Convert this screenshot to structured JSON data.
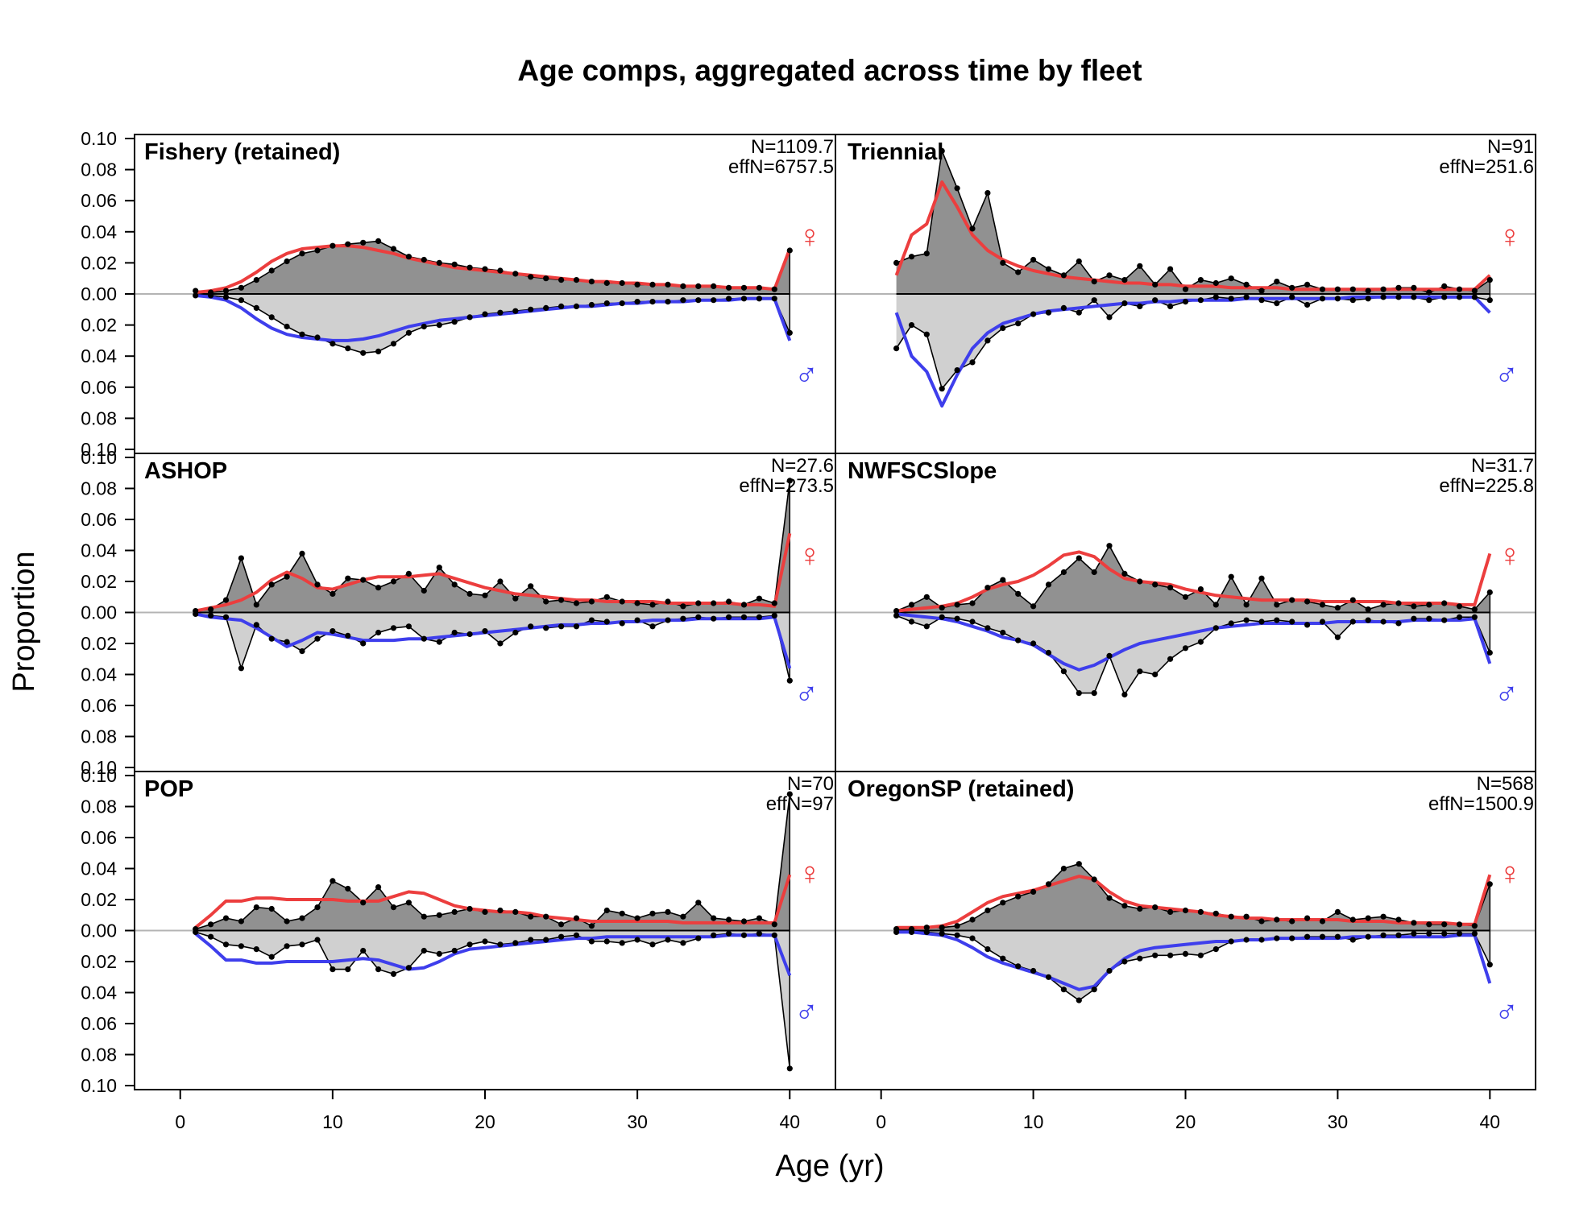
{
  "chart_data": {
    "type": "area",
    "title": "Age comps, aggregated across time by fleet",
    "xlabel": "Age (yr)",
    "ylabel": "Proportion",
    "xlim": [
      -3,
      43
    ],
    "ylim": [
      -0.1,
      0.1
    ],
    "x_ticks": [
      0,
      10,
      20,
      30,
      40
    ],
    "y_tick_labels": [
      "0.10",
      "0.08",
      "0.06",
      "0.04",
      "0.02",
      "0.00",
      "0.02",
      "0.04",
      "0.06",
      "0.08",
      "0.10"
    ],
    "sex_symbols": {
      "female": "♀",
      "male": "♂"
    },
    "colors": {
      "female_fill": "#919191",
      "male_fill": "#d0d0d0",
      "female_expected": "#ec3e3e",
      "male_expected": "#3e3eec",
      "observed": "#000000",
      "zero_line": "#b4b4b4"
    },
    "panels": [
      {
        "name": "Fishery (retained)",
        "n_label": "N=1109.7",
        "effn_label": "effN=6757.5",
        "female_obs": [
          0.002,
          0.001,
          0.002,
          0.004,
          0.009,
          0.015,
          0.021,
          0.026,
          0.028,
          0.031,
          0.032,
          0.033,
          0.034,
          0.029,
          0.024,
          0.022,
          0.02,
          0.019,
          0.017,
          0.016,
          0.015,
          0.013,
          0.011,
          0.01,
          0.009,
          0.009,
          0.008,
          0.007,
          0.007,
          0.006,
          0.006,
          0.006,
          0.005,
          0.005,
          0.005,
          0.004,
          0.004,
          0.004,
          0.003,
          0.028
        ],
        "male_obs": [
          0.001,
          0.001,
          0.002,
          0.004,
          0.009,
          0.015,
          0.021,
          0.026,
          0.028,
          0.032,
          0.035,
          0.038,
          0.037,
          0.032,
          0.025,
          0.021,
          0.02,
          0.018,
          0.015,
          0.013,
          0.012,
          0.011,
          0.01,
          0.009,
          0.008,
          0.008,
          0.007,
          0.006,
          0.006,
          0.005,
          0.005,
          0.005,
          0.004,
          0.004,
          0.004,
          0.003,
          0.003,
          0.003,
          0.003,
          0.025
        ],
        "female_exp": [
          0.001,
          0.002,
          0.004,
          0.008,
          0.014,
          0.021,
          0.026,
          0.029,
          0.03,
          0.031,
          0.031,
          0.03,
          0.028,
          0.026,
          0.023,
          0.021,
          0.019,
          0.017,
          0.016,
          0.015,
          0.014,
          0.013,
          0.012,
          0.011,
          0.01,
          0.009,
          0.008,
          0.008,
          0.007,
          0.007,
          0.006,
          0.006,
          0.005,
          0.005,
          0.005,
          0.004,
          0.004,
          0.004,
          0.003,
          0.029
        ],
        "male_exp": [
          0.001,
          0.002,
          0.004,
          0.009,
          0.016,
          0.022,
          0.026,
          0.028,
          0.029,
          0.03,
          0.03,
          0.029,
          0.027,
          0.024,
          0.021,
          0.019,
          0.017,
          0.016,
          0.015,
          0.014,
          0.013,
          0.012,
          0.011,
          0.01,
          0.009,
          0.008,
          0.008,
          0.007,
          0.006,
          0.006,
          0.005,
          0.005,
          0.005,
          0.004,
          0.004,
          0.004,
          0.003,
          0.003,
          0.003,
          0.03
        ]
      },
      {
        "name": "Triennial",
        "n_label": "N=91",
        "effn_label": "effN=251.6",
        "female_obs": [
          0.02,
          0.024,
          0.026,
          0.092,
          0.068,
          0.042,
          0.065,
          0.02,
          0.014,
          0.022,
          0.016,
          0.012,
          0.021,
          0.008,
          0.012,
          0.009,
          0.018,
          0.006,
          0.016,
          0.003,
          0.009,
          0.007,
          0.01,
          0.006,
          0.002,
          0.008,
          0.004,
          0.006,
          0.003,
          0.003,
          0.003,
          0.002,
          0.003,
          0.004,
          0.004,
          0.001,
          0.005,
          0.003,
          0.002,
          0.009
        ],
        "male_obs": [
          0.035,
          0.02,
          0.026,
          0.061,
          0.049,
          0.044,
          0.03,
          0.022,
          0.019,
          0.013,
          0.012,
          0.009,
          0.012,
          0.004,
          0.015,
          0.006,
          0.008,
          0.004,
          0.008,
          0.005,
          0.004,
          0.002,
          0.003,
          0.002,
          0.004,
          0.006,
          0.002,
          0.007,
          0.003,
          0.003,
          0.004,
          0.003,
          0.002,
          0.002,
          0.002,
          0.004,
          0.002,
          0.002,
          0.002,
          0.004
        ],
        "female_exp": [
          0.012,
          0.038,
          0.045,
          0.072,
          0.056,
          0.038,
          0.028,
          0.022,
          0.018,
          0.015,
          0.013,
          0.011,
          0.01,
          0.009,
          0.008,
          0.007,
          0.007,
          0.006,
          0.006,
          0.005,
          0.005,
          0.005,
          0.004,
          0.004,
          0.004,
          0.004,
          0.003,
          0.003,
          0.003,
          0.003,
          0.003,
          0.003,
          0.003,
          0.003,
          0.003,
          0.003,
          0.003,
          0.003,
          0.003,
          0.012
        ],
        "male_exp": [
          0.012,
          0.04,
          0.05,
          0.072,
          0.052,
          0.035,
          0.025,
          0.019,
          0.016,
          0.013,
          0.011,
          0.01,
          0.009,
          0.008,
          0.007,
          0.006,
          0.006,
          0.005,
          0.005,
          0.004,
          0.004,
          0.004,
          0.004,
          0.003,
          0.003,
          0.003,
          0.003,
          0.003,
          0.003,
          0.003,
          0.002,
          0.002,
          0.002,
          0.002,
          0.002,
          0.002,
          0.002,
          0.002,
          0.002,
          0.012
        ]
      },
      {
        "name": "ASHOP",
        "n_label": "N=27.6",
        "effn_label": "effN=273.5",
        "female_obs": [
          0.001,
          0.002,
          0.008,
          0.035,
          0.005,
          0.018,
          0.023,
          0.038,
          0.018,
          0.012,
          0.022,
          0.021,
          0.016,
          0.02,
          0.025,
          0.014,
          0.029,
          0.018,
          0.012,
          0.011,
          0.02,
          0.009,
          0.017,
          0.007,
          0.008,
          0.006,
          0.007,
          0.01,
          0.007,
          0.006,
          0.005,
          0.007,
          0.004,
          0.006,
          0.006,
          0.007,
          0.005,
          0.009,
          0.006,
          0.085
        ],
        "male_obs": [
          0.001,
          0.002,
          0.003,
          0.036,
          0.008,
          0.017,
          0.019,
          0.025,
          0.017,
          0.012,
          0.015,
          0.02,
          0.013,
          0.01,
          0.009,
          0.017,
          0.019,
          0.013,
          0.014,
          0.012,
          0.02,
          0.013,
          0.009,
          0.01,
          0.009,
          0.009,
          0.005,
          0.006,
          0.007,
          0.005,
          0.009,
          0.005,
          0.004,
          0.003,
          0.004,
          0.003,
          0.003,
          0.003,
          0.002,
          0.044
        ],
        "female_exp": [
          0.001,
          0.003,
          0.005,
          0.008,
          0.013,
          0.021,
          0.026,
          0.022,
          0.016,
          0.015,
          0.018,
          0.021,
          0.023,
          0.023,
          0.023,
          0.024,
          0.025,
          0.022,
          0.019,
          0.016,
          0.014,
          0.012,
          0.011,
          0.01,
          0.009,
          0.008,
          0.008,
          0.007,
          0.007,
          0.007,
          0.007,
          0.006,
          0.006,
          0.006,
          0.006,
          0.006,
          0.005,
          0.005,
          0.004,
          0.051
        ],
        "male_exp": [
          0.001,
          0.003,
          0.004,
          0.005,
          0.01,
          0.016,
          0.022,
          0.018,
          0.013,
          0.014,
          0.016,
          0.018,
          0.018,
          0.018,
          0.017,
          0.017,
          0.016,
          0.015,
          0.014,
          0.013,
          0.012,
          0.011,
          0.01,
          0.009,
          0.008,
          0.008,
          0.007,
          0.007,
          0.006,
          0.006,
          0.005,
          0.005,
          0.005,
          0.004,
          0.004,
          0.004,
          0.004,
          0.004,
          0.003,
          0.036
        ]
      },
      {
        "name": "NWFSCSlope",
        "n_label": "N=31.7",
        "effn_label": "effN=225.8",
        "female_obs": [
          0.001,
          0.005,
          0.01,
          0.003,
          0.005,
          0.006,
          0.016,
          0.021,
          0.012,
          0.004,
          0.018,
          0.026,
          0.035,
          0.026,
          0.043,
          0.025,
          0.02,
          0.018,
          0.016,
          0.01,
          0.015,
          0.005,
          0.023,
          0.005,
          0.022,
          0.005,
          0.008,
          0.007,
          0.005,
          0.003,
          0.008,
          0.002,
          0.005,
          0.006,
          0.004,
          0.005,
          0.006,
          0.004,
          0.002,
          0.013
        ],
        "male_obs": [
          0.002,
          0.006,
          0.009,
          0.003,
          0.004,
          0.006,
          0.01,
          0.013,
          0.018,
          0.02,
          0.026,
          0.038,
          0.052,
          0.052,
          0.028,
          0.053,
          0.038,
          0.04,
          0.03,
          0.023,
          0.019,
          0.01,
          0.007,
          0.005,
          0.006,
          0.005,
          0.006,
          0.008,
          0.006,
          0.016,
          0.006,
          0.005,
          0.006,
          0.007,
          0.004,
          0.004,
          0.005,
          0.003,
          0.003,
          0.026
        ],
        "female_exp": [
          0.001,
          0.002,
          0.003,
          0.004,
          0.006,
          0.01,
          0.015,
          0.018,
          0.02,
          0.024,
          0.03,
          0.037,
          0.039,
          0.036,
          0.028,
          0.022,
          0.02,
          0.019,
          0.018,
          0.015,
          0.013,
          0.011,
          0.01,
          0.009,
          0.008,
          0.008,
          0.008,
          0.008,
          0.007,
          0.007,
          0.007,
          0.007,
          0.007,
          0.006,
          0.006,
          0.006,
          0.006,
          0.005,
          0.005,
          0.038
        ],
        "male_exp": [
          0.001,
          0.002,
          0.003,
          0.004,
          0.006,
          0.009,
          0.012,
          0.016,
          0.018,
          0.021,
          0.027,
          0.033,
          0.037,
          0.034,
          0.029,
          0.024,
          0.02,
          0.018,
          0.016,
          0.014,
          0.012,
          0.01,
          0.009,
          0.008,
          0.007,
          0.007,
          0.007,
          0.007,
          0.007,
          0.006,
          0.006,
          0.006,
          0.006,
          0.006,
          0.005,
          0.005,
          0.005,
          0.005,
          0.004,
          0.033
        ]
      },
      {
        "name": "POP",
        "n_label": "N=70",
        "effn_label": "effN=97",
        "female_obs": [
          0.001,
          0.004,
          0.008,
          0.006,
          0.015,
          0.014,
          0.006,
          0.008,
          0.015,
          0.032,
          0.027,
          0.018,
          0.028,
          0.015,
          0.018,
          0.009,
          0.01,
          0.012,
          0.014,
          0.012,
          0.013,
          0.012,
          0.009,
          0.009,
          0.004,
          0.008,
          0.003,
          0.013,
          0.011,
          0.008,
          0.011,
          0.012,
          0.009,
          0.018,
          0.008,
          0.007,
          0.006,
          0.008,
          0.004,
          0.088
        ],
        "male_obs": [
          0.001,
          0.004,
          0.009,
          0.01,
          0.012,
          0.017,
          0.01,
          0.009,
          0.006,
          0.025,
          0.025,
          0.013,
          0.025,
          0.028,
          0.024,
          0.013,
          0.015,
          0.013,
          0.009,
          0.007,
          0.009,
          0.008,
          0.006,
          0.006,
          0.004,
          0.003,
          0.007,
          0.007,
          0.008,
          0.006,
          0.009,
          0.006,
          0.008,
          0.005,
          0.003,
          0.002,
          0.003,
          0.002,
          0.003,
          0.089
        ],
        "female_exp": [
          0.002,
          0.01,
          0.019,
          0.019,
          0.021,
          0.021,
          0.02,
          0.02,
          0.02,
          0.02,
          0.019,
          0.019,
          0.019,
          0.022,
          0.025,
          0.024,
          0.02,
          0.016,
          0.014,
          0.013,
          0.012,
          0.012,
          0.011,
          0.009,
          0.008,
          0.007,
          0.006,
          0.006,
          0.006,
          0.006,
          0.006,
          0.006,
          0.005,
          0.005,
          0.005,
          0.005,
          0.005,
          0.005,
          0.005,
          0.036
        ],
        "male_exp": [
          0.002,
          0.01,
          0.019,
          0.019,
          0.021,
          0.021,
          0.02,
          0.02,
          0.02,
          0.02,
          0.019,
          0.018,
          0.019,
          0.022,
          0.025,
          0.024,
          0.02,
          0.015,
          0.012,
          0.011,
          0.01,
          0.009,
          0.008,
          0.007,
          0.006,
          0.005,
          0.005,
          0.004,
          0.004,
          0.004,
          0.004,
          0.004,
          0.004,
          0.004,
          0.004,
          0.003,
          0.003,
          0.003,
          0.003,
          0.029
        ]
      },
      {
        "name": "OregonSP (retained)",
        "n_label": "N=568",
        "effn_label": "effN=1500.9",
        "female_obs": [
          0.001,
          0.001,
          0.002,
          0.002,
          0.003,
          0.007,
          0.013,
          0.018,
          0.022,
          0.025,
          0.03,
          0.04,
          0.043,
          0.033,
          0.021,
          0.016,
          0.014,
          0.015,
          0.012,
          0.013,
          0.012,
          0.011,
          0.009,
          0.009,
          0.006,
          0.007,
          0.006,
          0.008,
          0.006,
          0.012,
          0.007,
          0.008,
          0.009,
          0.007,
          0.005,
          0.004,
          0.004,
          0.004,
          0.003,
          0.03
        ],
        "male_obs": [
          0.001,
          0.001,
          0.001,
          0.002,
          0.003,
          0.005,
          0.012,
          0.018,
          0.023,
          0.026,
          0.03,
          0.038,
          0.045,
          0.038,
          0.026,
          0.02,
          0.018,
          0.016,
          0.016,
          0.015,
          0.016,
          0.012,
          0.007,
          0.006,
          0.006,
          0.005,
          0.005,
          0.004,
          0.004,
          0.004,
          0.006,
          0.004,
          0.003,
          0.003,
          0.002,
          0.002,
          0.002,
          0.002,
          0.002,
          0.022
        ],
        "female_exp": [
          0.002,
          0.002,
          0.002,
          0.003,
          0.006,
          0.012,
          0.018,
          0.022,
          0.024,
          0.026,
          0.029,
          0.032,
          0.035,
          0.033,
          0.025,
          0.019,
          0.016,
          0.015,
          0.014,
          0.013,
          0.012,
          0.01,
          0.009,
          0.008,
          0.008,
          0.007,
          0.007,
          0.007,
          0.007,
          0.007,
          0.006,
          0.006,
          0.006,
          0.005,
          0.005,
          0.005,
          0.005,
          0.004,
          0.004,
          0.036
        ],
        "male_exp": [
          0.001,
          0.001,
          0.002,
          0.003,
          0.006,
          0.011,
          0.017,
          0.021,
          0.024,
          0.027,
          0.03,
          0.034,
          0.038,
          0.036,
          0.026,
          0.018,
          0.013,
          0.011,
          0.01,
          0.009,
          0.008,
          0.007,
          0.007,
          0.006,
          0.006,
          0.005,
          0.005,
          0.005,
          0.005,
          0.005,
          0.004,
          0.004,
          0.004,
          0.004,
          0.004,
          0.004,
          0.004,
          0.003,
          0.003,
          0.034
        ]
      }
    ]
  }
}
